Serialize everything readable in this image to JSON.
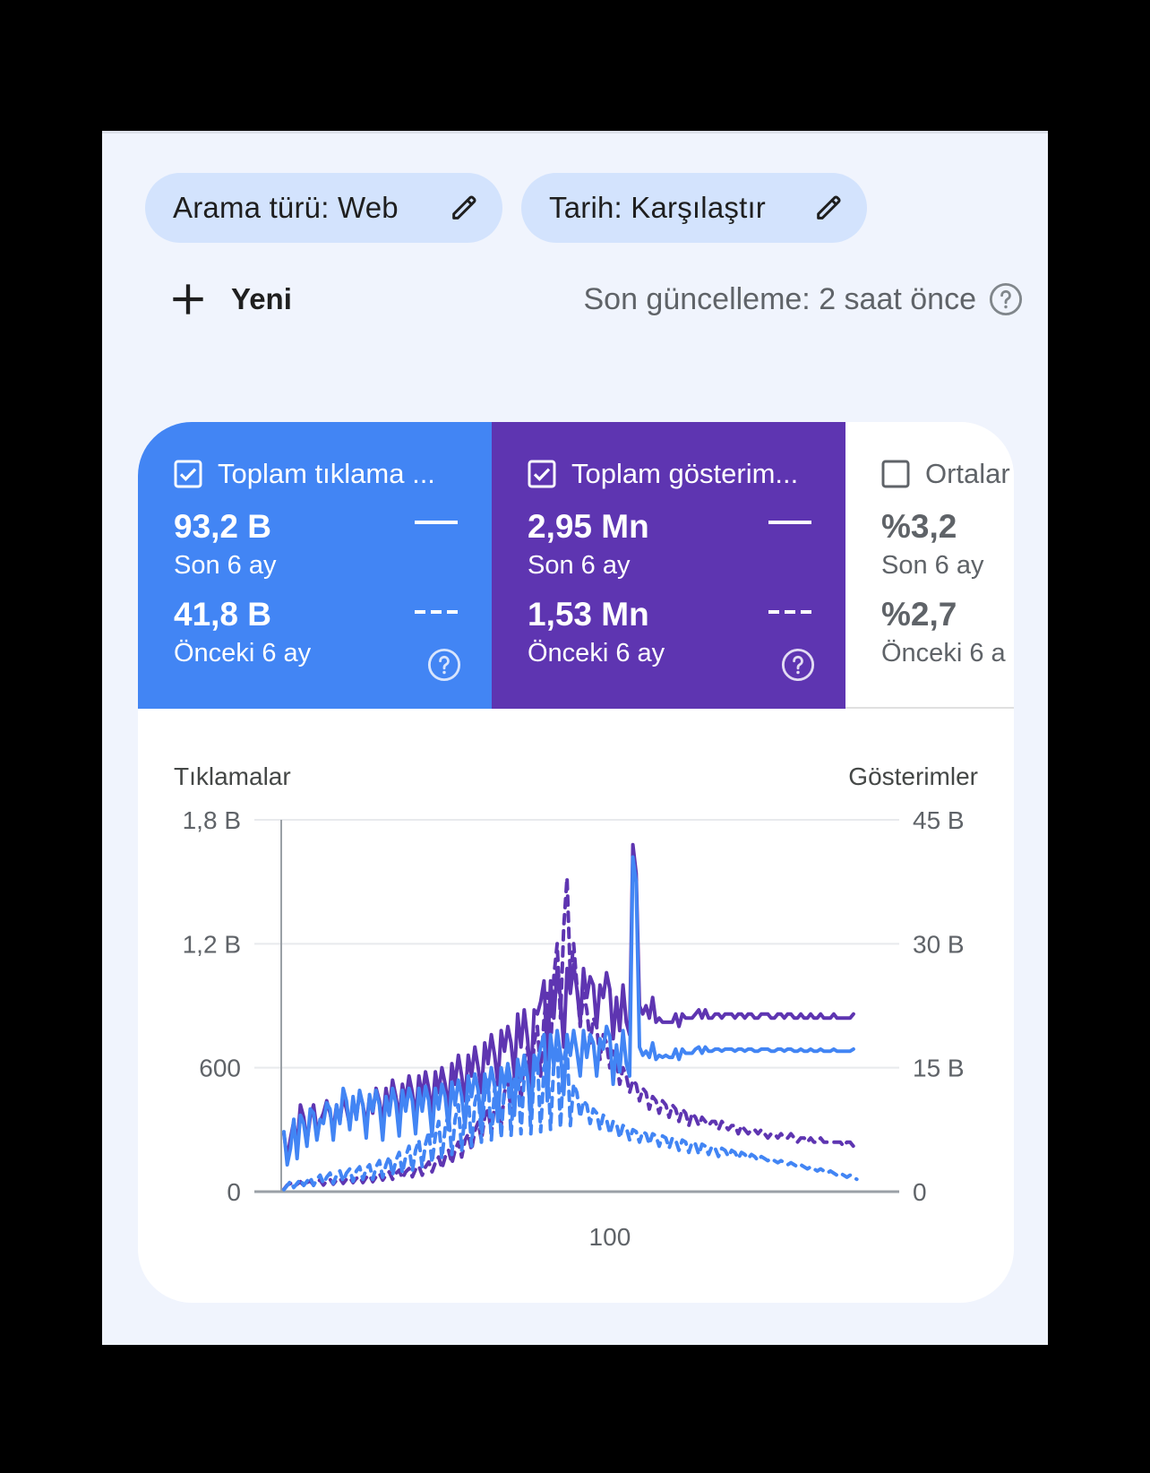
{
  "filters": {
    "search_type": "Arama türü: Web",
    "date": "Tarih: Karşılaştır"
  },
  "toolbar": {
    "new_label": "Yeni",
    "last_updated": "Son güncelleme: 2 saat önce"
  },
  "metrics": [
    {
      "title": "Toplam tıklama ...",
      "checked": true,
      "color": "#4285f4",
      "current_value": "93,2 B",
      "current_label": "Son 6 ay",
      "previous_value": "41,8 B",
      "previous_label": "Önceki 6 ay"
    },
    {
      "title": "Toplam gösterim...",
      "checked": true,
      "color": "#5e35b1",
      "current_value": "2,95 Mn",
      "current_label": "Son 6 ay",
      "previous_value": "1,53 Mn",
      "previous_label": "Önceki 6 ay"
    },
    {
      "title": "Ortalar",
      "checked": false,
      "current_value": "%3,2",
      "current_label": "Son 6 ay",
      "previous_value": "%2,7",
      "previous_label": "Önceki 6 a"
    }
  ],
  "chart_data": {
    "type": "line",
    "left_axis_title": "Tıklamalar",
    "right_axis_title": "Gösterimler",
    "y_left_ticks": [
      "0",
      "600",
      "1,2 B",
      "1,8 B"
    ],
    "y_right_ticks": [
      "0",
      "15 B",
      "30 B",
      "45 B"
    ],
    "y_left_range": [
      0,
      1800
    ],
    "y_right_range": [
      0,
      45000
    ],
    "x_tick_labels": [
      {
        "x": 100,
        "label": "100"
      }
    ],
    "x_range": [
      1,
      183
    ],
    "grid": true,
    "series": [
      {
        "key": "impr_cur",
        "axis": "right",
        "color": "#5e35b1",
        "dashed": false,
        "values": [
          7000,
          4000,
          6500,
          8500,
          5500,
          10500,
          9000,
          6000,
          9000,
          10500,
          7500,
          8500,
          9500,
          11000,
          9500,
          7500,
          10500,
          8500,
          11500,
          10000,
          8000,
          11000,
          9000,
          12000,
          10500,
          8000,
          11500,
          9500,
          12500,
          11000,
          8500,
          12500,
          10000,
          13500,
          11500,
          9000,
          13000,
          11000,
          14000,
          12000,
          9000,
          14000,
          11500,
          14500,
          12500,
          9500,
          14500,
          12000,
          15000,
          13000,
          10000,
          15500,
          13000,
          16500,
          14000,
          11000,
          16500,
          14000,
          17500,
          15000,
          12000,
          18000,
          15500,
          19000,
          16500,
          13000,
          19500,
          17000,
          20000,
          18000,
          14000,
          21500,
          17500,
          22000,
          18500,
          13500,
          22000,
          21500,
          23000,
          25500,
          16000,
          25500,
          21000,
          27000,
          23500,
          17500,
          27000,
          24000,
          27500,
          24500,
          20500,
          27000,
          23500,
          26000,
          25000,
          20000,
          25000,
          23500,
          26500,
          24500,
          18500,
          23500,
          19500,
          25000,
          20500,
          19000,
          42000,
          38500,
          22500,
          21500,
          22500,
          21000,
          23500,
          20500,
          21000,
          20500,
          20500,
          20500,
          20500,
          21500,
          20000,
          21500,
          21000,
          21000,
          21000,
          21500,
          22000,
          21000,
          22000,
          21000,
          21000,
          21500,
          21500,
          21000,
          21500,
          21500,
          21500,
          21000,
          21500,
          21500,
          21000,
          21500,
          21500,
          21000,
          21000,
          21500,
          21500,
          21500,
          21000,
          21000,
          21500,
          21500,
          21000,
          21500,
          21500,
          21000,
          21000,
          21500,
          21000,
          21000,
          21500,
          21000,
          21000,
          21500,
          21000,
          21000,
          21000,
          21500,
          21000,
          21000,
          21000,
          21000,
          21000,
          21500
        ]
      },
      {
        "key": "clicks_cur",
        "axis": "left",
        "color": "#4285f4",
        "dashed": false,
        "values": [
          290,
          130,
          210,
          350,
          160,
          370,
          330,
          220,
          400,
          380,
          250,
          350,
          330,
          430,
          400,
          250,
          420,
          330,
          500,
          440,
          300,
          460,
          350,
          490,
          420,
          260,
          470,
          390,
          490,
          420,
          250,
          460,
          370,
          500,
          430,
          270,
          490,
          390,
          500,
          440,
          280,
          500,
          390,
          510,
          440,
          270,
          500,
          400,
          520,
          460,
          300,
          530,
          420,
          540,
          460,
          310,
          560,
          460,
          570,
          490,
          330,
          570,
          480,
          600,
          510,
          340,
          600,
          510,
          620,
          530,
          370,
          640,
          540,
          660,
          560,
          360,
          660,
          620,
          700,
          760,
          440,
          760,
          610,
          780,
          670,
          470,
          760,
          660,
          780,
          680,
          560,
          780,
          650,
          760,
          720,
          560,
          740,
          690,
          800,
          750,
          520,
          710,
          580,
          780,
          620,
          560,
          1620,
          1500,
          700,
          660,
          680,
          650,
          720,
          640,
          660,
          650,
          660,
          650,
          650,
          690,
          640,
          690,
          670,
          670,
          670,
          690,
          700,
          670,
          700,
          680,
          680,
          690,
          690,
          680,
          690,
          690,
          690,
          680,
          690,
          690,
          680,
          690,
          690,
          680,
          680,
          690,
          690,
          690,
          680,
          680,
          690,
          690,
          680,
          690,
          690,
          680,
          680,
          690,
          680,
          680,
          690,
          680,
          680,
          690,
          680,
          680,
          680,
          690,
          680,
          680,
          680,
          680,
          680,
          690
        ]
      },
      {
        "key": "impr_prev",
        "axis": "right",
        "color": "#5e35b1",
        "dashed": true,
        "values": [
          300,
          800,
          1000,
          600,
          900,
          1200,
          700,
          1100,
          1300,
          800,
          1200,
          1400,
          800,
          1300,
          1500,
          900,
          1400,
          1600,
          1000,
          1500,
          1700,
          1100,
          1600,
          1800,
          1100,
          1700,
          2000,
          1200,
          1800,
          2200,
          1400,
          2000,
          2400,
          1500,
          2200,
          2600,
          1600,
          2400,
          2800,
          1800,
          2700,
          3100,
          2000,
          3000,
          3600,
          2400,
          3500,
          4200,
          2800,
          4200,
          5000,
          3400,
          5000,
          6000,
          4200,
          6200,
          7000,
          5000,
          7400,
          8400,
          6200,
          9000,
          10000,
          7000,
          10500,
          11500,
          8000,
          12000,
          13500,
          9500,
          14000,
          15500,
          11000,
          16000,
          17500,
          12000,
          18000,
          20000,
          14000,
          21000,
          24000,
          17000,
          26000,
          30000,
          21000,
          32000,
          38000,
          26000,
          30000,
          25000,
          20000,
          24000,
          22000,
          18000,
          21000,
          20000,
          16000,
          19000,
          18000,
          15000,
          17000,
          16000,
          13000,
          15000,
          14000,
          12000,
          13500,
          13000,
          11000,
          12500,
          12000,
          10000,
          11500,
          11000,
          9500,
          11000,
          10500,
          9000,
          10500,
          10000,
          8500,
          10000,
          9500,
          8000,
          9500,
          9000,
          8000,
          9000,
          8500,
          8000,
          8500,
          8500,
          7500,
          8500,
          8000,
          7500,
          8000,
          8000,
          7000,
          8000,
          7500,
          7000,
          7500,
          7500,
          7000,
          7500,
          7000,
          6500,
          7000,
          7000,
          6500,
          7000,
          6500,
          6500,
          7000,
          6500,
          6000,
          6500,
          6500,
          6000,
          6500,
          6000,
          6000,
          6500,
          6000,
          6000,
          6000,
          6000,
          6000,
          6000,
          5500,
          6000,
          6000,
          5500
        ]
      },
      {
        "key": "clicks_prev",
        "axis": "left",
        "color": "#4285f4",
        "dashed": true,
        "values": [
          10,
          30,
          50,
          20,
          40,
          60,
          30,
          50,
          70,
          30,
          60,
          80,
          40,
          70,
          90,
          40,
          80,
          100,
          50,
          90,
          110,
          50,
          100,
          120,
          60,
          110,
          130,
          60,
          120,
          150,
          70,
          130,
          170,
          80,
          150,
          190,
          90,
          170,
          220,
          100,
          200,
          250,
          120,
          230,
          290,
          140,
          270,
          340,
          160,
          310,
          380,
          180,
          350,
          420,
          200,
          390,
          460,
          220,
          430,
          500,
          240,
          470,
          540,
          250,
          500,
          560,
          260,
          520,
          580,
          270,
          540,
          600,
          280,
          560,
          620,
          280,
          580,
          640,
          290,
          600,
          660,
          300,
          620,
          700,
          310,
          640,
          720,
          320,
          520,
          480,
          360,
          440,
          420,
          330,
          400,
          380,
          300,
          370,
          350,
          280,
          340,
          330,
          260,
          320,
          310,
          250,
          300,
          290,
          240,
          290,
          280,
          230,
          280,
          270,
          220,
          270,
          260,
          210,
          260,
          250,
          200,
          250,
          240,
          190,
          240,
          230,
          180,
          230,
          220,
          180,
          220,
          210,
          170,
          210,
          200,
          170,
          200,
          190,
          160,
          190,
          180,
          160,
          180,
          170,
          150,
          170,
          160,
          150,
          160,
          150,
          140,
          150,
          140,
          130,
          140,
          130,
          120,
          130,
          120,
          110,
          120,
          110,
          100,
          110,
          100,
          90,
          100,
          90,
          80,
          90,
          80,
          70,
          80,
          70,
          60
        ]
      }
    ]
  }
}
